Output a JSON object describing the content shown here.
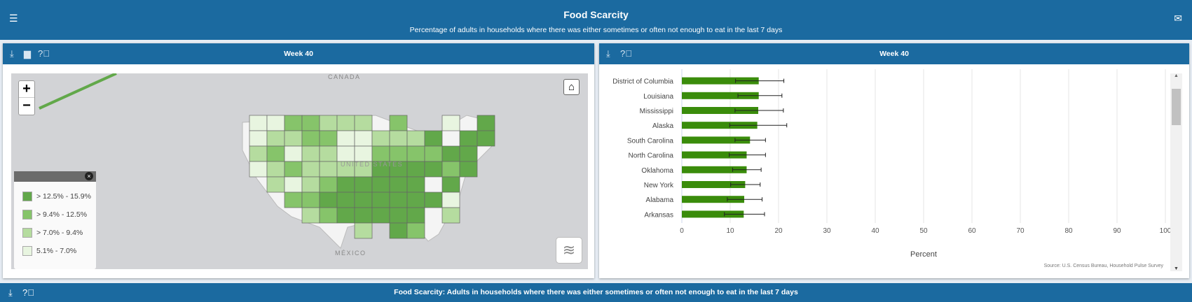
{
  "header": {
    "title": "Food Scarcity",
    "subtitle": "Percentage of adults in households where there was either sometimes or often not enough to eat in the last 7 days",
    "menu_icon": "menu-collapse-icon",
    "mail_icon": "mail-icon"
  },
  "map_panel": {
    "title": "Week 40",
    "icons": [
      "download-icon",
      "print-icon",
      "help-icon"
    ],
    "zoom_in": "+",
    "zoom_out": "−",
    "home_icon": "⌂",
    "labels": {
      "canada": "CANADA",
      "usa": "UNITED STATES",
      "mexico": "MÉXICO"
    },
    "legend": [
      {
        "label": "> 12.5% - 15.9%",
        "color": "#62a84a"
      },
      {
        "label": "> 9.4% - 12.5%",
        "color": "#86c46a"
      },
      {
        "label": "> 7.0% - 9.4%",
        "color": "#b5dc9f"
      },
      {
        "label": "5.1% - 7.0%",
        "color": "#e8f5e0"
      }
    ]
  },
  "chart_panel": {
    "title": "Week 40",
    "icons": [
      "download-icon",
      "help-icon"
    ],
    "source": "Source: U.S. Census Bureau, Household Pulse Survey"
  },
  "chart_data": {
    "type": "bar",
    "orientation": "horizontal",
    "categories": [
      "District of Columbia",
      "Louisiana",
      "Mississippi",
      "Alaska",
      "South Carolina",
      "North Carolina",
      "Oklahoma",
      "New York",
      "Alabama",
      "Arkansas"
    ],
    "values": [
      15.9,
      15.9,
      15.8,
      15.6,
      14.1,
      13.4,
      13.4,
      13.1,
      12.9,
      12.8
    ],
    "error_low": [
      11.1,
      11.6,
      11.0,
      9.9,
      11.0,
      9.8,
      10.5,
      10.1,
      9.4,
      8.8
    ],
    "error_high": [
      21.1,
      20.7,
      21.0,
      21.7,
      17.3,
      17.3,
      16.4,
      16.2,
      16.6,
      17.1
    ],
    "xlabel": "Percent",
    "xlim": [
      0,
      100
    ],
    "xticks": [
      0,
      10,
      20,
      30,
      40,
      50,
      60,
      70,
      80,
      90,
      100
    ],
    "grid": true,
    "bar_color": "#3a8c0b"
  },
  "bottom": {
    "title": "Food Scarcity: Adults in households where there was either sometimes or often not enough to eat in the last 7 days",
    "icons": [
      "download-icon",
      "help-icon"
    ]
  }
}
